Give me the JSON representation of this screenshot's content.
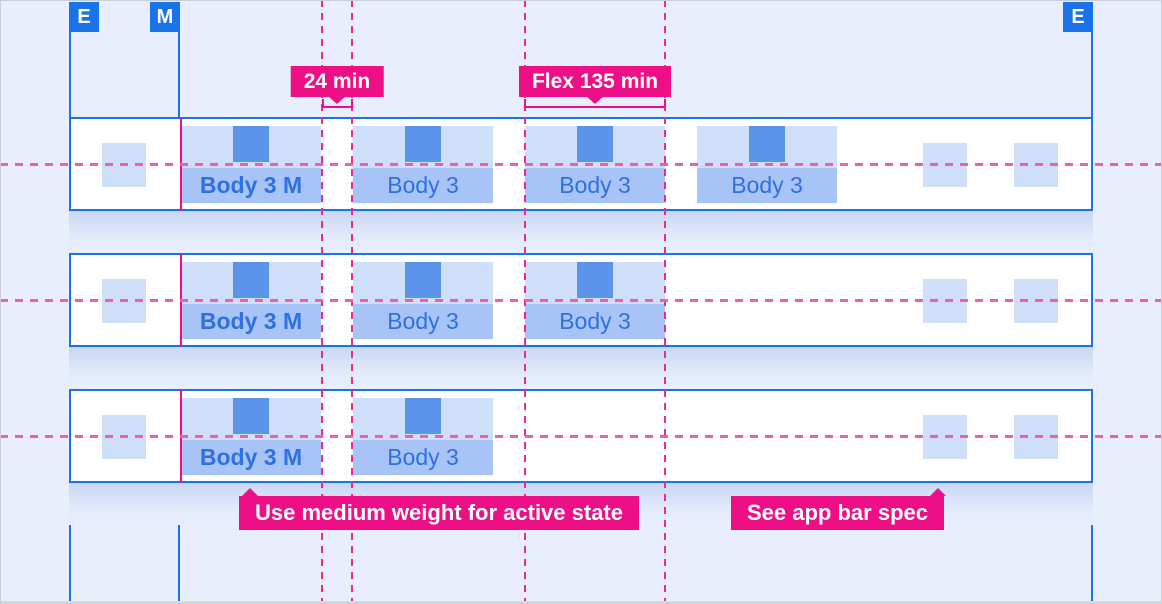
{
  "colors": {
    "guide_blue": "#1a73e8",
    "redline_pink": "#ee0f87",
    "dash_pink_v": "#ee2a8e",
    "dash_pink_h": "#ee5fae",
    "tab_surface": "#cfdef9",
    "tab_band": "#a8c4f7",
    "icon_blue": "#5c93eb",
    "text_blue": "#2f71e0",
    "bg": "#e8eefc"
  },
  "guides": {
    "left_edge_label": "E",
    "margin_label": "M",
    "right_edge_label": "E"
  },
  "measurements": [
    {
      "label": "24 min"
    },
    {
      "label": "Flex 135 min"
    }
  ],
  "notes": [
    {
      "label": "Use medium weight for active state"
    },
    {
      "label": "See app bar spec"
    }
  ],
  "rows": [
    {
      "tabs": [
        {
          "label": "Body 3 M",
          "active": true
        },
        {
          "label": "Body 3",
          "active": false
        },
        {
          "label": "Body 3",
          "active": false
        },
        {
          "label": "Body 3",
          "active": false
        }
      ],
      "left_icon_placeholder": true,
      "right_icon_placeholders": 2
    },
    {
      "tabs": [
        {
          "label": "Body 3 M",
          "active": true
        },
        {
          "label": "Body 3",
          "active": false
        },
        {
          "label": "Body 3",
          "active": false
        }
      ],
      "left_icon_placeholder": true,
      "right_icon_placeholders": 2
    },
    {
      "tabs": [
        {
          "label": "Body 3 M",
          "active": true
        },
        {
          "label": "Body 3",
          "active": false
        }
      ],
      "left_icon_placeholder": true,
      "right_icon_placeholders": 2
    }
  ]
}
